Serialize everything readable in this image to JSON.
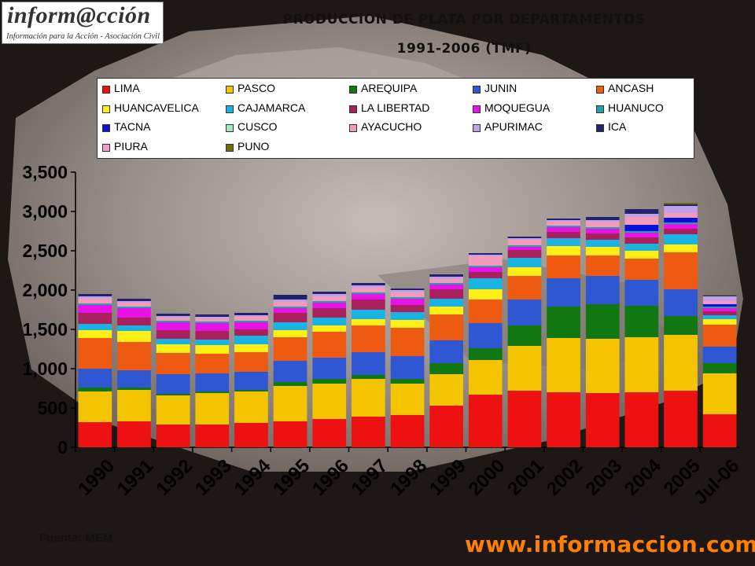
{
  "logo": {
    "text_main": "inform@cción",
    "text_sub": "Información para la Acción - Asociación Civil"
  },
  "title": {
    "line1": "PRODUCCION  DE PLATA POR DEPARTAMENTOS",
    "line2": "1991-2006 (TMF)"
  },
  "source": "Fuente: MEM",
  "website": "www.informaccion.com",
  "chart_data": {
    "type": "bar",
    "stacked": true,
    "ylim": [
      0,
      3500
    ],
    "yticks": [
      "0",
      "500",
      "1,000",
      "1,500",
      "2,000",
      "2,500",
      "3,000",
      "3,500"
    ],
    "ytick_values": [
      0,
      500,
      1000,
      1500,
      2000,
      2500,
      3000,
      3500
    ],
    "grid": false,
    "legend_position": "top",
    "categories": [
      "1990",
      "1991",
      "1992",
      "1993",
      "1994",
      "1995",
      "1996",
      "1997",
      "1998",
      "1999",
      "2000",
      "2001",
      "2002",
      "2003",
      "2004",
      "2005",
      "Jul-06"
    ],
    "series": [
      {
        "name": "LIMA",
        "color": "#ee1111",
        "values": [
          320,
          330,
          290,
          290,
          310,
          330,
          360,
          390,
          410,
          530,
          670,
          720,
          700,
          690,
          700,
          720,
          420
        ]
      },
      {
        "name": "PASCO",
        "color": "#f5c400",
        "values": [
          390,
          400,
          370,
          400,
          400,
          450,
          450,
          480,
          400,
          400,
          440,
          570,
          690,
          690,
          700,
          710,
          520
        ]
      },
      {
        "name": "AREQUIPA",
        "color": "#117711",
        "values": [
          50,
          30,
          20,
          20,
          20,
          50,
          60,
          50,
          60,
          140,
          150,
          260,
          400,
          440,
          400,
          240,
          130
        ]
      },
      {
        "name": "JUNIN",
        "color": "#2f57d4",
        "values": [
          240,
          220,
          250,
          230,
          230,
          270,
          270,
          290,
          290,
          290,
          320,
          330,
          360,
          360,
          330,
          340,
          210
        ]
      },
      {
        "name": "ANCASH",
        "color": "#ee5a10",
        "values": [
          390,
          360,
          270,
          250,
          250,
          300,
          330,
          340,
          360,
          330,
          300,
          300,
          290,
          260,
          270,
          470,
          280
        ]
      },
      {
        "name": "HUANCAVELICA",
        "color": "#ffef14",
        "values": [
          100,
          140,
          110,
          110,
          100,
          90,
          80,
          80,
          100,
          100,
          130,
          110,
          120,
          110,
          100,
          100,
          70
        ]
      },
      {
        "name": "CAJAMARCA",
        "color": "#1ab2e0",
        "values": [
          80,
          70,
          70,
          70,
          110,
          100,
          100,
          120,
          100,
          100,
          140,
          120,
          100,
          90,
          90,
          130,
          50
        ]
      },
      {
        "name": "LA LIBERTAD",
        "color": "#a8215c",
        "values": [
          140,
          100,
          110,
          110,
          80,
          120,
          120,
          130,
          90,
          120,
          80,
          100,
          80,
          80,
          80,
          70,
          50
        ]
      },
      {
        "name": "MOQUEGUA",
        "color": "#e812e8",
        "values": [
          100,
          120,
          100,
          100,
          90,
          60,
          70,
          70,
          80,
          60,
          60,
          40,
          60,
          60,
          60,
          60,
          40
        ]
      },
      {
        "name": "HUANUCO",
        "color": "#1fa3a8",
        "values": [
          20,
          20,
          20,
          20,
          20,
          20,
          20,
          20,
          20,
          20,
          20,
          20,
          20,
          20,
          20,
          20,
          20
        ]
      },
      {
        "name": "TACNA",
        "color": "#0a10d8",
        "values": [
          0,
          0,
          0,
          0,
          0,
          0,
          0,
          0,
          0,
          0,
          0,
          0,
          0,
          0,
          80,
          60,
          30
        ]
      },
      {
        "name": "CUSCO",
        "color": "#a3e8b8",
        "values": [
          0,
          0,
          0,
          0,
          0,
          0,
          0,
          0,
          0,
          0,
          0,
          0,
          0,
          0,
          0,
          0,
          0
        ]
      },
      {
        "name": "AYACUCHO",
        "color": "#f59ab8",
        "values": [
          60,
          50,
          40,
          40,
          50,
          60,
          60,
          60,
          60,
          50,
          120,
          70,
          50,
          70,
          100,
          60,
          40
        ]
      },
      {
        "name": "APURIMAC",
        "color": "#c0a0e8",
        "values": [
          30,
          20,
          20,
          20,
          20,
          30,
          30,
          30,
          30,
          30,
          20,
          20,
          20,
          20,
          40,
          90,
          60
        ]
      },
      {
        "name": "ICA",
        "color": "#23236b",
        "values": [
          30,
          30,
          30,
          30,
          30,
          60,
          30,
          30,
          20,
          30,
          20,
          20,
          20,
          40,
          60,
          20,
          10
        ]
      },
      {
        "name": "PIURA",
        "color": "#f2a0c8",
        "values": [
          0,
          0,
          0,
          0,
          0,
          0,
          0,
          0,
          0,
          0,
          0,
          0,
          0,
          0,
          0,
          0,
          0
        ]
      },
      {
        "name": "PUNO",
        "color": "#6e6e10",
        "values": [
          0,
          0,
          0,
          0,
          0,
          0,
          0,
          0,
          0,
          0,
          0,
          0,
          0,
          0,
          0,
          20,
          10
        ]
      }
    ]
  }
}
